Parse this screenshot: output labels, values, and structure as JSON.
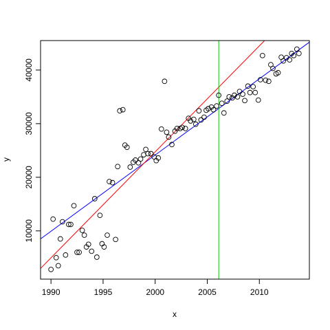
{
  "chart_data": {
    "type": "scatter",
    "title": "",
    "xlabel": "x",
    "ylabel": "y",
    "xlim": [
      1989,
      2014.8
    ],
    "ylim": [
      1000,
      45500
    ],
    "xticks": [
      1990,
      1995,
      2000,
      2005,
      2010
    ],
    "yticks": [
      10000,
      20000,
      30000,
      40000
    ],
    "grid": false,
    "point_shape": "open-circle",
    "points": [
      [
        1990.0,
        2800
      ],
      [
        1990.2,
        12200
      ],
      [
        1990.5,
        5000
      ],
      [
        1990.7,
        3500
      ],
      [
        1990.9,
        8500
      ],
      [
        1991.1,
        11700
      ],
      [
        1991.4,
        5500
      ],
      [
        1991.7,
        11200
      ],
      [
        1991.9,
        11200
      ],
      [
        1992.2,
        14700
      ],
      [
        1992.5,
        6000
      ],
      [
        1992.7,
        6000
      ],
      [
        1993.0,
        10100
      ],
      [
        1993.2,
        9200
      ],
      [
        1993.4,
        7000
      ],
      [
        1993.6,
        7500
      ],
      [
        1993.9,
        6200
      ],
      [
        1994.2,
        16000
      ],
      [
        1994.4,
        5100
      ],
      [
        1994.7,
        12900
      ],
      [
        1994.9,
        7600
      ],
      [
        1995.1,
        7000
      ],
      [
        1995.4,
        9200
      ],
      [
        1995.6,
        19200
      ],
      [
        1995.9,
        19000
      ],
      [
        1996.2,
        8400
      ],
      [
        1996.4,
        22000
      ],
      [
        1996.6,
        32400
      ],
      [
        1996.9,
        32600
      ],
      [
        1997.1,
        26000
      ],
      [
        1997.3,
        25600
      ],
      [
        1997.6,
        21900
      ],
      [
        1997.9,
        22800
      ],
      [
        1998.1,
        23200
      ],
      [
        1998.4,
        22700
      ],
      [
        1998.6,
        23400
      ],
      [
        1998.9,
        24200
      ],
      [
        1999.1,
        25200
      ],
      [
        1999.3,
        24400
      ],
      [
        1999.6,
        24400
      ],
      [
        1999.9,
        23800
      ],
      [
        2000.1,
        23100
      ],
      [
        2000.3,
        23600
      ],
      [
        2000.6,
        29000
      ],
      [
        2000.9,
        37900
      ],
      [
        2001.1,
        28400
      ],
      [
        2001.3,
        27500
      ],
      [
        2001.6,
        26100
      ],
      [
        2001.9,
        28600
      ],
      [
        2002.1,
        29100
      ],
      [
        2002.4,
        29100
      ],
      [
        2002.6,
        29300
      ],
      [
        2002.9,
        29100
      ],
      [
        2003.2,
        31000
      ],
      [
        2003.4,
        30500
      ],
      [
        2003.7,
        30800
      ],
      [
        2003.9,
        29900
      ],
      [
        2004.2,
        32400
      ],
      [
        2004.4,
        30700
      ],
      [
        2004.7,
        31200
      ],
      [
        2004.9,
        32500
      ],
      [
        2005.1,
        32800
      ],
      [
        2005.4,
        33100
      ],
      [
        2005.6,
        32600
      ],
      [
        2005.9,
        33300
      ],
      [
        2006.1,
        35300
      ],
      [
        2006.4,
        33800
      ],
      [
        2006.6,
        32000
      ],
      [
        2006.9,
        34200
      ],
      [
        2007.1,
        35000
      ],
      [
        2007.4,
        34800
      ],
      [
        2007.6,
        35300
      ],
      [
        2007.9,
        35000
      ],
      [
        2008.1,
        36000
      ],
      [
        2008.4,
        35500
      ],
      [
        2008.6,
        34300
      ],
      [
        2008.9,
        37000
      ],
      [
        2009.1,
        35800
      ],
      [
        2009.4,
        36900
      ],
      [
        2009.6,
        35800
      ],
      [
        2009.9,
        34400
      ],
      [
        2010.1,
        38200
      ],
      [
        2010.3,
        42700
      ],
      [
        2010.6,
        38100
      ],
      [
        2010.9,
        37900
      ],
      [
        2011.1,
        41000
      ],
      [
        2011.3,
        40300
      ],
      [
        2011.6,
        39300
      ],
      [
        2011.8,
        39500
      ],
      [
        2012.1,
        42400
      ],
      [
        2012.3,
        41700
      ],
      [
        2012.6,
        42300
      ],
      [
        2012.9,
        41900
      ],
      [
        2013.1,
        43100
      ],
      [
        2013.3,
        42700
      ],
      [
        2013.6,
        43900
      ],
      [
        2013.8,
        43100
      ]
    ],
    "lines": [
      {
        "kind": "segment",
        "color": "#0000ff",
        "x": [
          1989,
          2014.8
        ],
        "y": [
          8500,
          45200
        ]
      },
      {
        "kind": "segment",
        "color": "#ff0000",
        "x": [
          1989,
          2010.5
        ],
        "y": [
          3000,
          45500
        ]
      },
      {
        "kind": "vertical",
        "color": "#00cc00",
        "x": 2006.1
      }
    ]
  }
}
